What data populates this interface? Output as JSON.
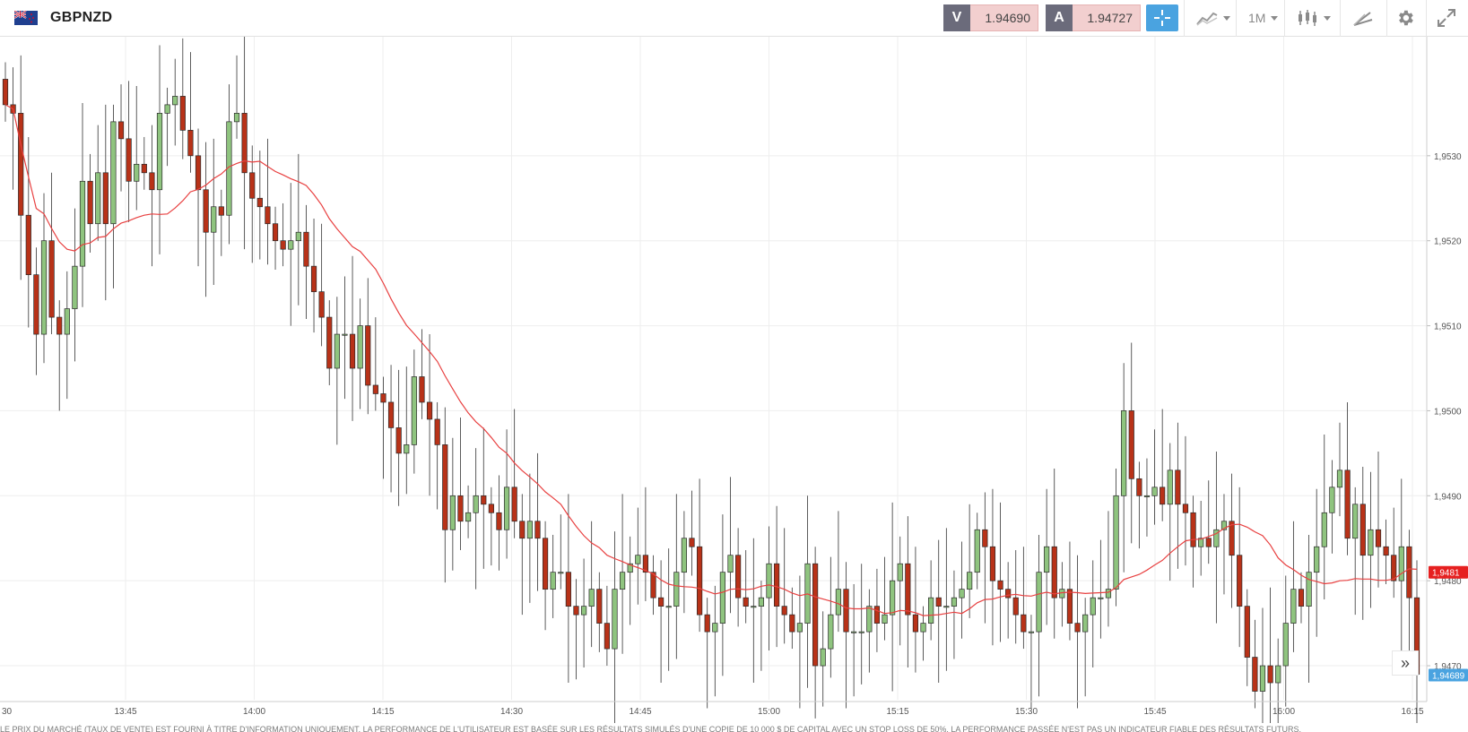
{
  "instrument": {
    "symbol": "GBPNZD",
    "flag_icon": "uk-nz-flag-icon"
  },
  "quotes": {
    "sell": {
      "label": "V",
      "price": "1.94690"
    },
    "buy": {
      "label": "A",
      "price": "1.94727"
    }
  },
  "toolbar": {
    "crosshair_icon": "crosshair-icon",
    "chart_type_icon": "line-chart-icon",
    "timeframe": "1M",
    "candles_icon": "candlestick-icon",
    "draw_icon": "draw-tools-icon",
    "settings_icon": "gear-icon",
    "fullscreen_icon": "expand-icon"
  },
  "colors": {
    "up": "#8fc47f",
    "down": "#b83218",
    "ma": "#e84040",
    "current_price_bg": "#4aa3e0",
    "ma_price_bg": "#e62020"
  },
  "chart_data": {
    "type": "candlestick",
    "x_labels": [
      "30",
      "13:45",
      "14:00",
      "14:15",
      "14:30",
      "14:45",
      "15:00",
      "15:15",
      "15:30",
      "15:45",
      "16:00",
      "16:15"
    ],
    "y_ticks": [
      "1,9530",
      "1,9520",
      "1,9510",
      "1,9500",
      "1,9490",
      "1,9480",
      "1,9470"
    ],
    "ylim": [
      1.9466,
      1.9544
    ],
    "ma_price_label": "1,9481",
    "current_price_label": "1,94689",
    "closes": [
      1.9536,
      1.9535,
      1.9523,
      1.9516,
      1.9509,
      1.952,
      1.9511,
      1.9509,
      1.9512,
      1.9517,
      1.9527,
      1.9522,
      1.9528,
      1.9522,
      1.9534,
      1.9532,
      1.9527,
      1.9529,
      1.9528,
      1.9526,
      1.9535,
      1.9536,
      1.9537,
      1.9533,
      1.953,
      1.9526,
      1.9521,
      1.9524,
      1.9523,
      1.9534,
      1.9535,
      1.9528,
      1.9525,
      1.9524,
      1.9522,
      1.952,
      1.9519,
      1.952,
      1.9521,
      1.9517,
      1.9514,
      1.9511,
      1.9505,
      1.9509,
      1.9509,
      1.9505,
      1.951,
      1.9503,
      1.9502,
      1.9501,
      1.9498,
      1.9495,
      1.9496,
      1.9504,
      1.9501,
      1.9499,
      1.9496,
      1.9486,
      1.949,
      1.9487,
      1.9488,
      1.949,
      1.9489,
      1.9488,
      1.9486,
      1.9491,
      1.9487,
      1.9485,
      1.9487,
      1.9485,
      1.9479,
      1.9481,
      1.9481,
      1.9477,
      1.9476,
      1.9477,
      1.9479,
      1.9475,
      1.9472,
      1.9479,
      1.9481,
      1.9482,
      1.9483,
      1.9481,
      1.9478,
      1.9477,
      1.9477,
      1.9481,
      1.9485,
      1.9484,
      1.9476,
      1.9474,
      1.9475,
      1.9481,
      1.9483,
      1.9478,
      1.9477,
      1.9477,
      1.9478,
      1.9482,
      1.9477,
      1.9476,
      1.9474,
      1.9475,
      1.9482,
      1.947,
      1.9472,
      1.9476,
      1.9479,
      1.9474,
      1.9474,
      1.9474,
      1.9477,
      1.9475,
      1.9476,
      1.948,
      1.9482,
      1.9476,
      1.9474,
      1.9475,
      1.9478,
      1.9477,
      1.9477,
      1.9478,
      1.9479,
      1.9481,
      1.9486,
      1.9484,
      1.948,
      1.9479,
      1.9478,
      1.9476,
      1.9474,
      1.9474,
      1.9481,
      1.9484,
      1.9478,
      1.9479,
      1.9475,
      1.9474,
      1.9476,
      1.9478,
      1.9478,
      1.9479,
      1.949,
      1.95,
      1.9492,
      1.949,
      1.949,
      1.9491,
      1.9489,
      1.9493,
      1.9489,
      1.9488,
      1.9484,
      1.9485,
      1.9484,
      1.9486,
      1.9487,
      1.9483,
      1.9477,
      1.9471,
      1.9467,
      1.947,
      1.9468,
      1.947,
      1.9475,
      1.9479,
      1.9477,
      1.9481,
      1.9484,
      1.9488,
      1.9491,
      1.9493,
      1.9485,
      1.9489,
      1.9483,
      1.9486,
      1.9484,
      1.9483,
      1.948,
      1.9484,
      1.9478,
      1.9469
    ]
  },
  "footer": {
    "disclaimer": "LE PRIX DU MARCHÉ (TAUX DE VENTE) EST FOURNI À TITRE D'INFORMATION UNIQUEMENT. LA PERFORMANCE DE L'UTILISATEUR EST BASÉE SUR LES RÉSULTATS SIMULÉS D'UNE COPIE DE 10 000 $ DE CAPITAL AVEC UN STOP LOSS DE 50%. LA PERFORMANCE PASSÉE N'EST PAS UN INDICATEUR FIABLE DES RÉSULTATS FUTURS.",
    "collapse_label": "»"
  }
}
